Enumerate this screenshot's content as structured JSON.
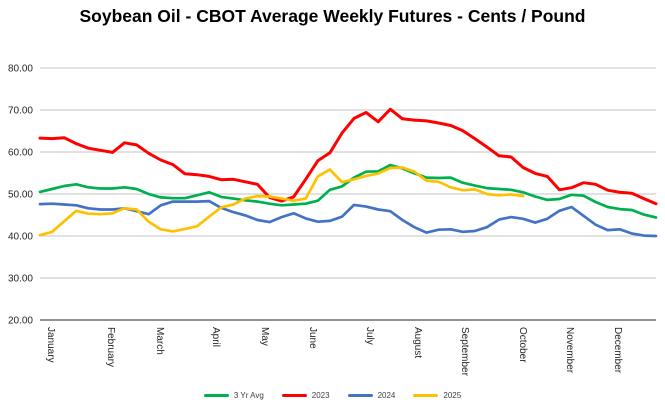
{
  "chart_data": {
    "type": "line",
    "title": "Soybean Oil - CBOT Average Weekly Futures - Cents / Pound",
    "x_unit": "week",
    "months": [
      "January",
      "February",
      "March",
      "April",
      "May",
      "June",
      "July",
      "August",
      "September",
      "October",
      "November",
      "December"
    ],
    "y_ticks": [
      20,
      30,
      40,
      50,
      60,
      70,
      80
    ],
    "ylim": [
      20,
      80
    ],
    "weeks_per_year": 52,
    "grid": true,
    "legend_position": "bottom",
    "gridline_color": "#C3C3C3",
    "axis_line_color": "#262626",
    "series": [
      {
        "name": "3 Yr Avg",
        "color": "#00B050",
        "values": [
          50.5,
          51.2,
          51.9,
          52.3,
          51.6,
          51.3,
          51.3,
          51.6,
          51.2,
          50.0,
          49.2,
          49.0,
          49.0,
          49.7,
          50.4,
          49.3,
          48.9,
          48.5,
          48.2,
          47.7,
          47.3,
          47.5,
          47.7,
          48.4,
          51.0,
          51.8,
          53.9,
          55.3,
          55.4,
          56.9,
          56.1,
          54.9,
          53.9,
          53.8,
          53.9,
          52.7,
          52.0,
          51.4,
          51.2,
          51.0,
          50.4,
          49.4,
          48.6,
          48.8,
          49.8,
          49.6,
          48.1,
          46.9,
          46.4,
          46.2,
          45.1,
          44.4
        ]
      },
      {
        "name": "2023",
        "color": "#FF0000",
        "values": [
          63.3,
          63.2,
          63.4,
          62.0,
          60.9,
          60.4,
          59.9,
          62.2,
          61.7,
          59.7,
          58.1,
          57.0,
          54.8,
          54.6,
          54.2,
          53.4,
          53.5,
          52.9,
          52.3,
          49.2,
          48.3,
          49.3,
          53.5,
          57.9,
          59.8,
          64.5,
          68.0,
          69.4,
          67.2,
          70.2,
          67.9,
          67.6,
          67.4,
          66.9,
          66.3,
          65.1,
          63.2,
          61.2,
          59.1,
          58.8,
          56.3,
          54.9,
          54.2,
          51.0,
          51.5,
          52.7,
          52.3,
          50.9,
          50.4,
          50.2,
          48.9,
          47.7
        ]
      },
      {
        "name": "2024",
        "color": "#4472C4",
        "values": [
          47.6,
          47.7,
          47.5,
          47.3,
          46.6,
          46.3,
          46.3,
          46.6,
          45.9,
          45.2,
          47.3,
          48.2,
          48.2,
          48.2,
          48.3,
          46.7,
          45.7,
          44.9,
          43.8,
          43.3,
          44.5,
          45.4,
          44.2,
          43.4,
          43.6,
          44.6,
          47.4,
          47.0,
          46.3,
          45.9,
          43.8,
          42.1,
          40.8,
          41.5,
          41.6,
          41.0,
          41.2,
          42.1,
          43.9,
          44.5,
          44.1,
          43.2,
          44.1,
          46.0,
          46.9,
          44.8,
          42.7,
          41.4,
          41.6,
          40.6,
          40.1,
          40.0
        ]
      },
      {
        "name": "2025",
        "color": "#FFC000",
        "values": [
          40.2,
          41.0,
          43.5,
          46.0,
          45.3,
          45.2,
          45.4,
          46.6,
          46.3,
          43.4,
          41.6,
          41.1,
          41.7,
          42.3,
          44.6,
          46.8,
          47.5,
          48.9,
          49.5,
          49.4,
          48.9,
          48.4,
          48.9,
          54.2,
          55.8,
          52.8,
          53.5,
          54.3,
          54.9,
          56.2,
          56.3,
          55.3,
          53.2,
          52.9,
          51.6,
          50.9,
          51.1,
          50.0,
          49.7,
          49.9,
          49.5
        ]
      }
    ]
  }
}
